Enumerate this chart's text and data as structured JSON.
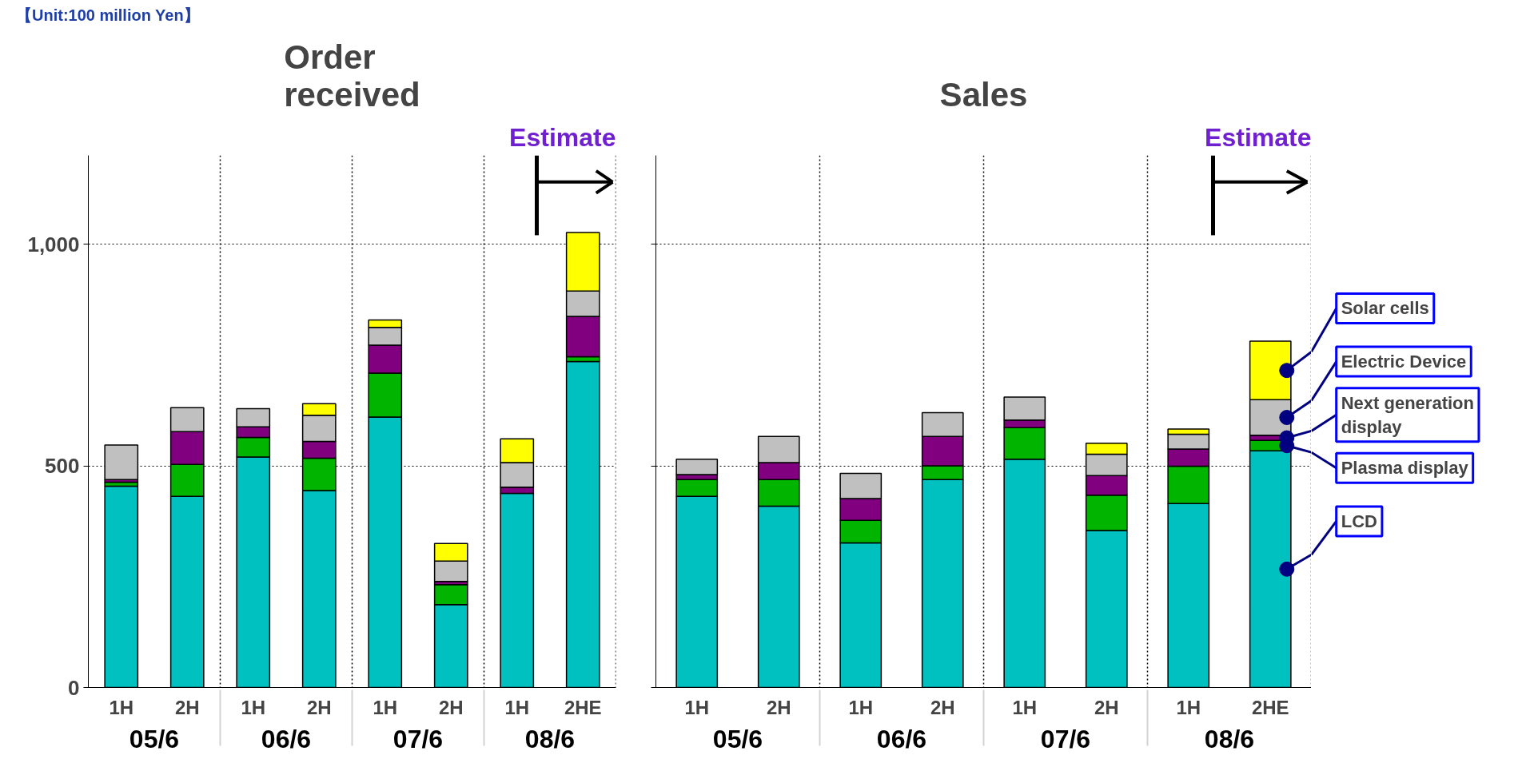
{
  "chart_data": [
    {
      "type": "bar",
      "title": "Order received",
      "ylabel": "【Unit:100 million Yen】",
      "stacked": true,
      "grid": true,
      "categories": [
        "1H",
        "2H",
        "1H",
        "2H",
        "1H",
        "2H",
        "1H",
        "2HE"
      ],
      "annotations": [
        "05/6",
        "06/6",
        "07/6",
        "08/6",
        "Estimate"
      ],
      "ylim": [
        0,
        1200
      ],
      "yticks": [
        0,
        500,
        {
          "value": 1000,
          "label": "1,000"
        }
      ],
      "series": [
        {
          "color": "#00c0c0",
          "values": [
            454,
            431,
            520,
            444,
            610,
            187,
            438,
            735
          ]
        },
        {
          "color": "#00b400",
          "values": [
            9,
            72,
            44,
            73,
            99,
            45,
            null,
            11
          ]
        },
        {
          "color": "#800080",
          "values": [
            6,
            74,
            24,
            38,
            63,
            7,
            14,
            91
          ]
        },
        {
          "color": "#c0c0c0",
          "values": [
            78,
            54,
            41,
            59,
            40,
            46,
            55,
            57
          ]
        },
        {
          "color": "#ffff00",
          "values": [
            null,
            null,
            null,
            26,
            17,
            40,
            54,
            132
          ]
        }
      ]
    },
    {
      "type": "bar",
      "title": "Sales",
      "stacked": true,
      "grid": true,
      "tick_labels": "x",
      "categories": [
        "1H",
        "2H",
        "1H",
        "2H",
        "1H",
        "2H",
        "1H",
        "2HE"
      ],
      "annotations": [
        "05/6",
        "06/6",
        "07/6",
        "08/6",
        "Estimate"
      ],
      "ylim": [
        0,
        1200
      ],
      "yticks": [
        {
          "value": 0,
          "label": null
        },
        {
          "value": 500,
          "label": null
        },
        {
          "value": 1000,
          "label": null
        }
      ],
      "series": [
        {
          "name": "LCD",
          "color": "#00c0c0",
          "values": [
            431,
            409,
            326,
            469,
            515,
            354,
            415,
            534
          ]
        },
        {
          "name": "Plasma display",
          "color": "#00b400",
          "values": [
            38,
            60,
            51,
            31,
            71,
            80,
            84,
            23
          ]
        },
        {
          "name": "Next generation display",
          "color": "#800080",
          "values": [
            11,
            38,
            49,
            66,
            17,
            44,
            39,
            12
          ]
        },
        {
          "name": "Electric Device",
          "color": "#c0c0c0",
          "values": [
            35,
            59,
            57,
            54,
            52,
            48,
            33,
            80
          ]
        },
        {
          "name": "Solar cells",
          "color": "#ffff00",
          "values": [
            null,
            null,
            null,
            null,
            null,
            25,
            12,
            132
          ]
        }
      ]
    }
  ]
}
